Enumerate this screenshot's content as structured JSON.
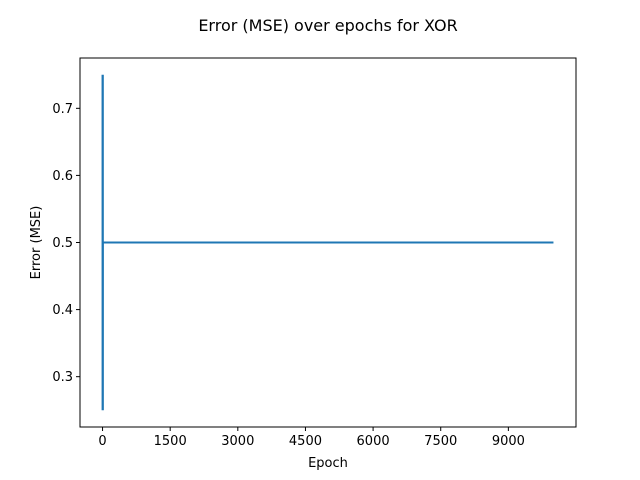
{
  "chart_data": {
    "type": "line",
    "title": "Error (MSE) over epochs for XOR",
    "xlabel": "Epoch",
    "ylabel": "Error (MSE)",
    "xlim": [
      -500,
      10500
    ],
    "ylim": [
      0.225,
      0.775
    ],
    "xticks": [
      0,
      1500,
      3000,
      4500,
      6000,
      7500,
      9000
    ],
    "xtick_labels": [
      "0",
      "1500",
      "3000",
      "4500",
      "6000",
      "7500",
      "9000"
    ],
    "yticks": [
      0.3,
      0.4,
      0.5,
      0.6,
      0.7
    ],
    "ytick_labels": [
      "0.3",
      "0.4",
      "0.5",
      "0.6",
      "0.7"
    ],
    "grid": false,
    "series": [
      {
        "color": "#1f77b4",
        "x": [
          0,
          1,
          2,
          3,
          4,
          5,
          6,
          7,
          8,
          9,
          10,
          10000
        ],
        "y": [
          0.75,
          0.25,
          0.75,
          0.25,
          0.75,
          0.25,
          0.75,
          0.25,
          0.5,
          0.5,
          0.5,
          0.5
        ]
      }
    ]
  }
}
